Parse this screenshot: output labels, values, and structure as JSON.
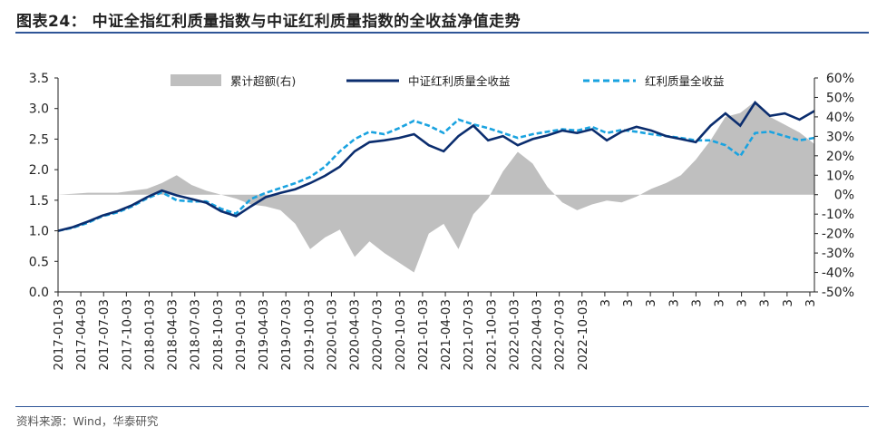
{
  "header": {
    "title": "图表24：  中证全指红利质量指数与中证红利质量指数的全收益净值走势"
  },
  "footer": {
    "source": "资料来源：Wind，华泰研究"
  },
  "colors": {
    "excess": "#bfbfbf",
    "quality_index": "#0b2d6e",
    "dividend_quality": "#1aa3e0",
    "rule": "#2f5597"
  },
  "chart_data": {
    "type": "line",
    "title": "",
    "legend": [
      {
        "name": "累计超额(右)",
        "style": "area",
        "axis": "right"
      },
      {
        "name": "中证红利质量全收益",
        "style": "solid",
        "axis": "left"
      },
      {
        "name": "红利质量全收益",
        "style": "dashed",
        "axis": "left"
      }
    ],
    "legend_position": "top",
    "y_left": {
      "min": 0.0,
      "max": 3.5,
      "ticks": [
        "0.0",
        "0.5",
        "1.0",
        "1.5",
        "2.0",
        "2.5",
        "3.0",
        "3.5"
      ]
    },
    "y_right": {
      "min": -50,
      "max": 60,
      "ticks": [
        "60%",
        "50%",
        "40%",
        "30%",
        "20%",
        "10%",
        "0%",
        "-10%",
        "-20%",
        "-30%",
        "-40%",
        "-50%"
      ]
    },
    "x_labels": [
      "2017-01-03",
      "2017-04-03",
      "2017-07-03",
      "2017-10-03",
      "2018-01-03",
      "2018-04-03",
      "2018-07-03",
      "2018-10-03",
      "2019-01-03",
      "2019-04-03",
      "2019-07-03",
      "2019-10-03",
      "2020-01-03",
      "2020-04-03",
      "2020-07-03",
      "2020-10-03",
      "2021-01-03",
      "2021-04-03",
      "2021-07-03",
      "2021-10-03",
      "2022-01-03",
      "2022-04-03",
      "2022-07-03",
      "2022-10-03",
      "3",
      "3",
      "3",
      "3",
      "3",
      "3",
      "3",
      "3",
      "3",
      "3"
    ],
    "x_quarter_index": [
      0,
      1,
      2,
      3,
      4,
      5,
      6,
      7,
      8,
      9,
      10,
      11,
      12,
      13,
      14,
      15,
      16,
      17,
      18,
      19,
      20,
      21,
      22,
      23,
      24,
      25,
      26,
      27,
      28,
      29,
      30,
      31,
      32,
      33
    ],
    "series": [
      {
        "name": "中证红利质量全收益",
        "axis": "left",
        "values": [
          1.0,
          1.06,
          1.15,
          1.25,
          1.32,
          1.42,
          1.55,
          1.66,
          1.58,
          1.52,
          1.46,
          1.32,
          1.24,
          1.4,
          1.55,
          1.62,
          1.68,
          1.78,
          1.9,
          2.05,
          2.3,
          2.45,
          2.48,
          2.52,
          2.58,
          2.4,
          2.3,
          2.55,
          2.72,
          2.48,
          2.55,
          2.4,
          2.5,
          2.56,
          2.64,
          2.6,
          2.66,
          2.48,
          2.62,
          2.7,
          2.64,
          2.55,
          2.5,
          2.45,
          2.72,
          2.92,
          2.72,
          3.1,
          2.88,
          2.92,
          2.82,
          2.96
        ]
      },
      {
        "name": "红利质量全收益",
        "axis": "left",
        "values": [
          1.0,
          1.05,
          1.13,
          1.24,
          1.3,
          1.4,
          1.53,
          1.63,
          1.5,
          1.48,
          1.48,
          1.36,
          1.28,
          1.52,
          1.62,
          1.7,
          1.78,
          1.88,
          2.05,
          2.3,
          2.5,
          2.62,
          2.58,
          2.68,
          2.8,
          2.72,
          2.6,
          2.82,
          2.74,
          2.68,
          2.6,
          2.52,
          2.58,
          2.62,
          2.66,
          2.64,
          2.7,
          2.6,
          2.65,
          2.62,
          2.58,
          2.55,
          2.52,
          2.48,
          2.48,
          2.4,
          2.22,
          2.6,
          2.62,
          2.55,
          2.48,
          2.52
        ]
      },
      {
        "name": "累计超额(右)",
        "axis": "right",
        "values": [
          0,
          0.5,
          1,
          1,
          1,
          2,
          3,
          6,
          10,
          5,
          2,
          0,
          -2,
          -5,
          -6,
          -8,
          -15,
          -28,
          -22,
          -18,
          -32,
          -24,
          -30,
          -35,
          -40,
          -20,
          -15,
          -28,
          -10,
          -2,
          12,
          22,
          16,
          4,
          -4,
          -8,
          -5,
          -3,
          -4,
          -1,
          3,
          6,
          10,
          18,
          28,
          40,
          42,
          48,
          40,
          36,
          32,
          26
        ]
      }
    ]
  }
}
